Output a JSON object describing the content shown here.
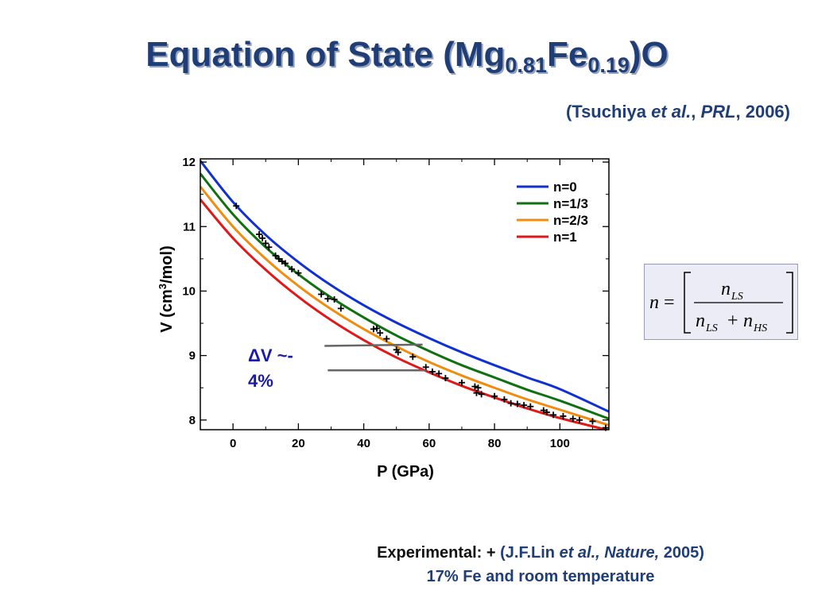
{
  "slide": {
    "title_main": "Equation of State (Mg",
    "title_sub1": "0.81",
    "title_mid": "Fe",
    "title_sub2": "0.19",
    "title_end": ")O"
  },
  "citation": {
    "open": "(Tsuchiya ",
    "etal": "et al.",
    "sep": ", ",
    "journal": "PRL",
    "year": ", 2006)"
  },
  "annotation": {
    "line1": "ΔV ~-",
    "line2": "4%"
  },
  "formula": {
    "lhs": "n",
    "numerator": "LS",
    "denominator_a": "LS",
    "denominator_b": "HS"
  },
  "footer": {
    "label": "Experimental:",
    "marker": "+",
    "ref_open": "(J.F.Lin ",
    "ref_italic": "et al., Nature,",
    "ref_close": " 2005)",
    "line2": "17% Fe and room temperature"
  },
  "colors": {
    "title": "#1f3e78",
    "n0": "#1030d0",
    "n13": "#107010",
    "n23": "#f08c10",
    "n1": "#e01818",
    "annotation": "#1a1aa8"
  },
  "chart_data": {
    "type": "line",
    "xlabel": "P (GPa)",
    "ylabel": "V (cm³/mol)",
    "xlim": [
      -10,
      115
    ],
    "ylim": [
      7.85,
      12.05
    ],
    "xticks": [
      0,
      20,
      40,
      60,
      80,
      100
    ],
    "yticks": [
      8,
      9,
      10,
      11,
      12
    ],
    "legend_position": "top-right",
    "series": [
      {
        "name": "n=0",
        "color": "#1030d0",
        "x": [
          -10,
          0,
          10,
          20,
          30,
          40,
          50,
          60,
          70,
          80,
          90,
          100,
          115
        ],
        "y": [
          12.02,
          11.38,
          10.87,
          10.45,
          10.09,
          9.78,
          9.51,
          9.27,
          9.05,
          8.85,
          8.66,
          8.48,
          8.13
        ]
      },
      {
        "name": "n=1/3",
        "color": "#107010",
        "x": [
          -10,
          0,
          10,
          20,
          30,
          40,
          50,
          60,
          70,
          80,
          90,
          100,
          115
        ],
        "y": [
          11.82,
          11.19,
          10.68,
          10.26,
          9.9,
          9.59,
          9.31,
          9.07,
          8.85,
          8.66,
          8.47,
          8.3,
          8.02
        ]
      },
      {
        "name": "n=2/3",
        "color": "#f08c10",
        "x": [
          -10,
          0,
          10,
          20,
          30,
          40,
          50,
          60,
          70,
          80,
          90,
          100,
          115
        ],
        "y": [
          11.62,
          11.0,
          10.5,
          10.08,
          9.72,
          9.41,
          9.14,
          8.9,
          8.69,
          8.5,
          8.32,
          8.16,
          7.92
        ]
      },
      {
        "name": "n=1",
        "color": "#e01818",
        "x": [
          -10,
          0,
          10,
          20,
          30,
          40,
          50,
          60,
          70,
          80,
          90,
          100,
          115
        ],
        "y": [
          11.42,
          10.82,
          10.33,
          9.91,
          9.55,
          9.24,
          8.97,
          8.74,
          8.53,
          8.35,
          8.18,
          8.03,
          7.84
        ]
      }
    ],
    "experimental_points": {
      "marker": "+",
      "x": [
        1,
        8,
        9,
        10,
        11,
        13,
        14,
        15,
        16,
        18,
        20,
        27,
        29,
        31,
        33,
        43,
        44,
        45,
        47,
        50,
        50.5,
        55,
        59,
        61,
        63,
        65,
        70,
        74,
        74.5,
        75,
        76,
        80,
        83,
        85,
        87,
        89,
        91,
        95,
        96,
        98,
        101,
        104,
        106,
        110,
        114
      ],
      "y": [
        11.32,
        10.88,
        10.82,
        10.74,
        10.68,
        10.55,
        10.5,
        10.46,
        10.43,
        10.34,
        10.28,
        9.95,
        9.88,
        9.87,
        9.73,
        9.41,
        9.42,
        9.35,
        9.26,
        9.09,
        9.05,
        8.98,
        8.82,
        8.75,
        8.72,
        8.65,
        8.58,
        8.52,
        8.42,
        8.5,
        8.4,
        8.37,
        8.32,
        8.26,
        8.25,
        8.23,
        8.21,
        8.15,
        8.12,
        8.08,
        8.06,
        8.02,
        8.0,
        7.98,
        7.88
      ]
    },
    "delta_lines": [
      {
        "x": [
          28,
          58
        ],
        "y": [
          9.15,
          9.17
        ]
      },
      {
        "x": [
          29,
          59
        ],
        "y": [
          8.77,
          8.77
        ]
      }
    ]
  }
}
